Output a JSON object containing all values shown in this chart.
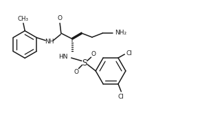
{
  "bg_color": "#ffffff",
  "line_color": "#1a1a1a",
  "line_width": 1.1,
  "font_size": 6.5,
  "figsize": [
    3.07,
    1.93
  ],
  "dpi": 100,
  "xlim": [
    0,
    10.5
  ],
  "ylim": [
    0,
    6.5
  ]
}
